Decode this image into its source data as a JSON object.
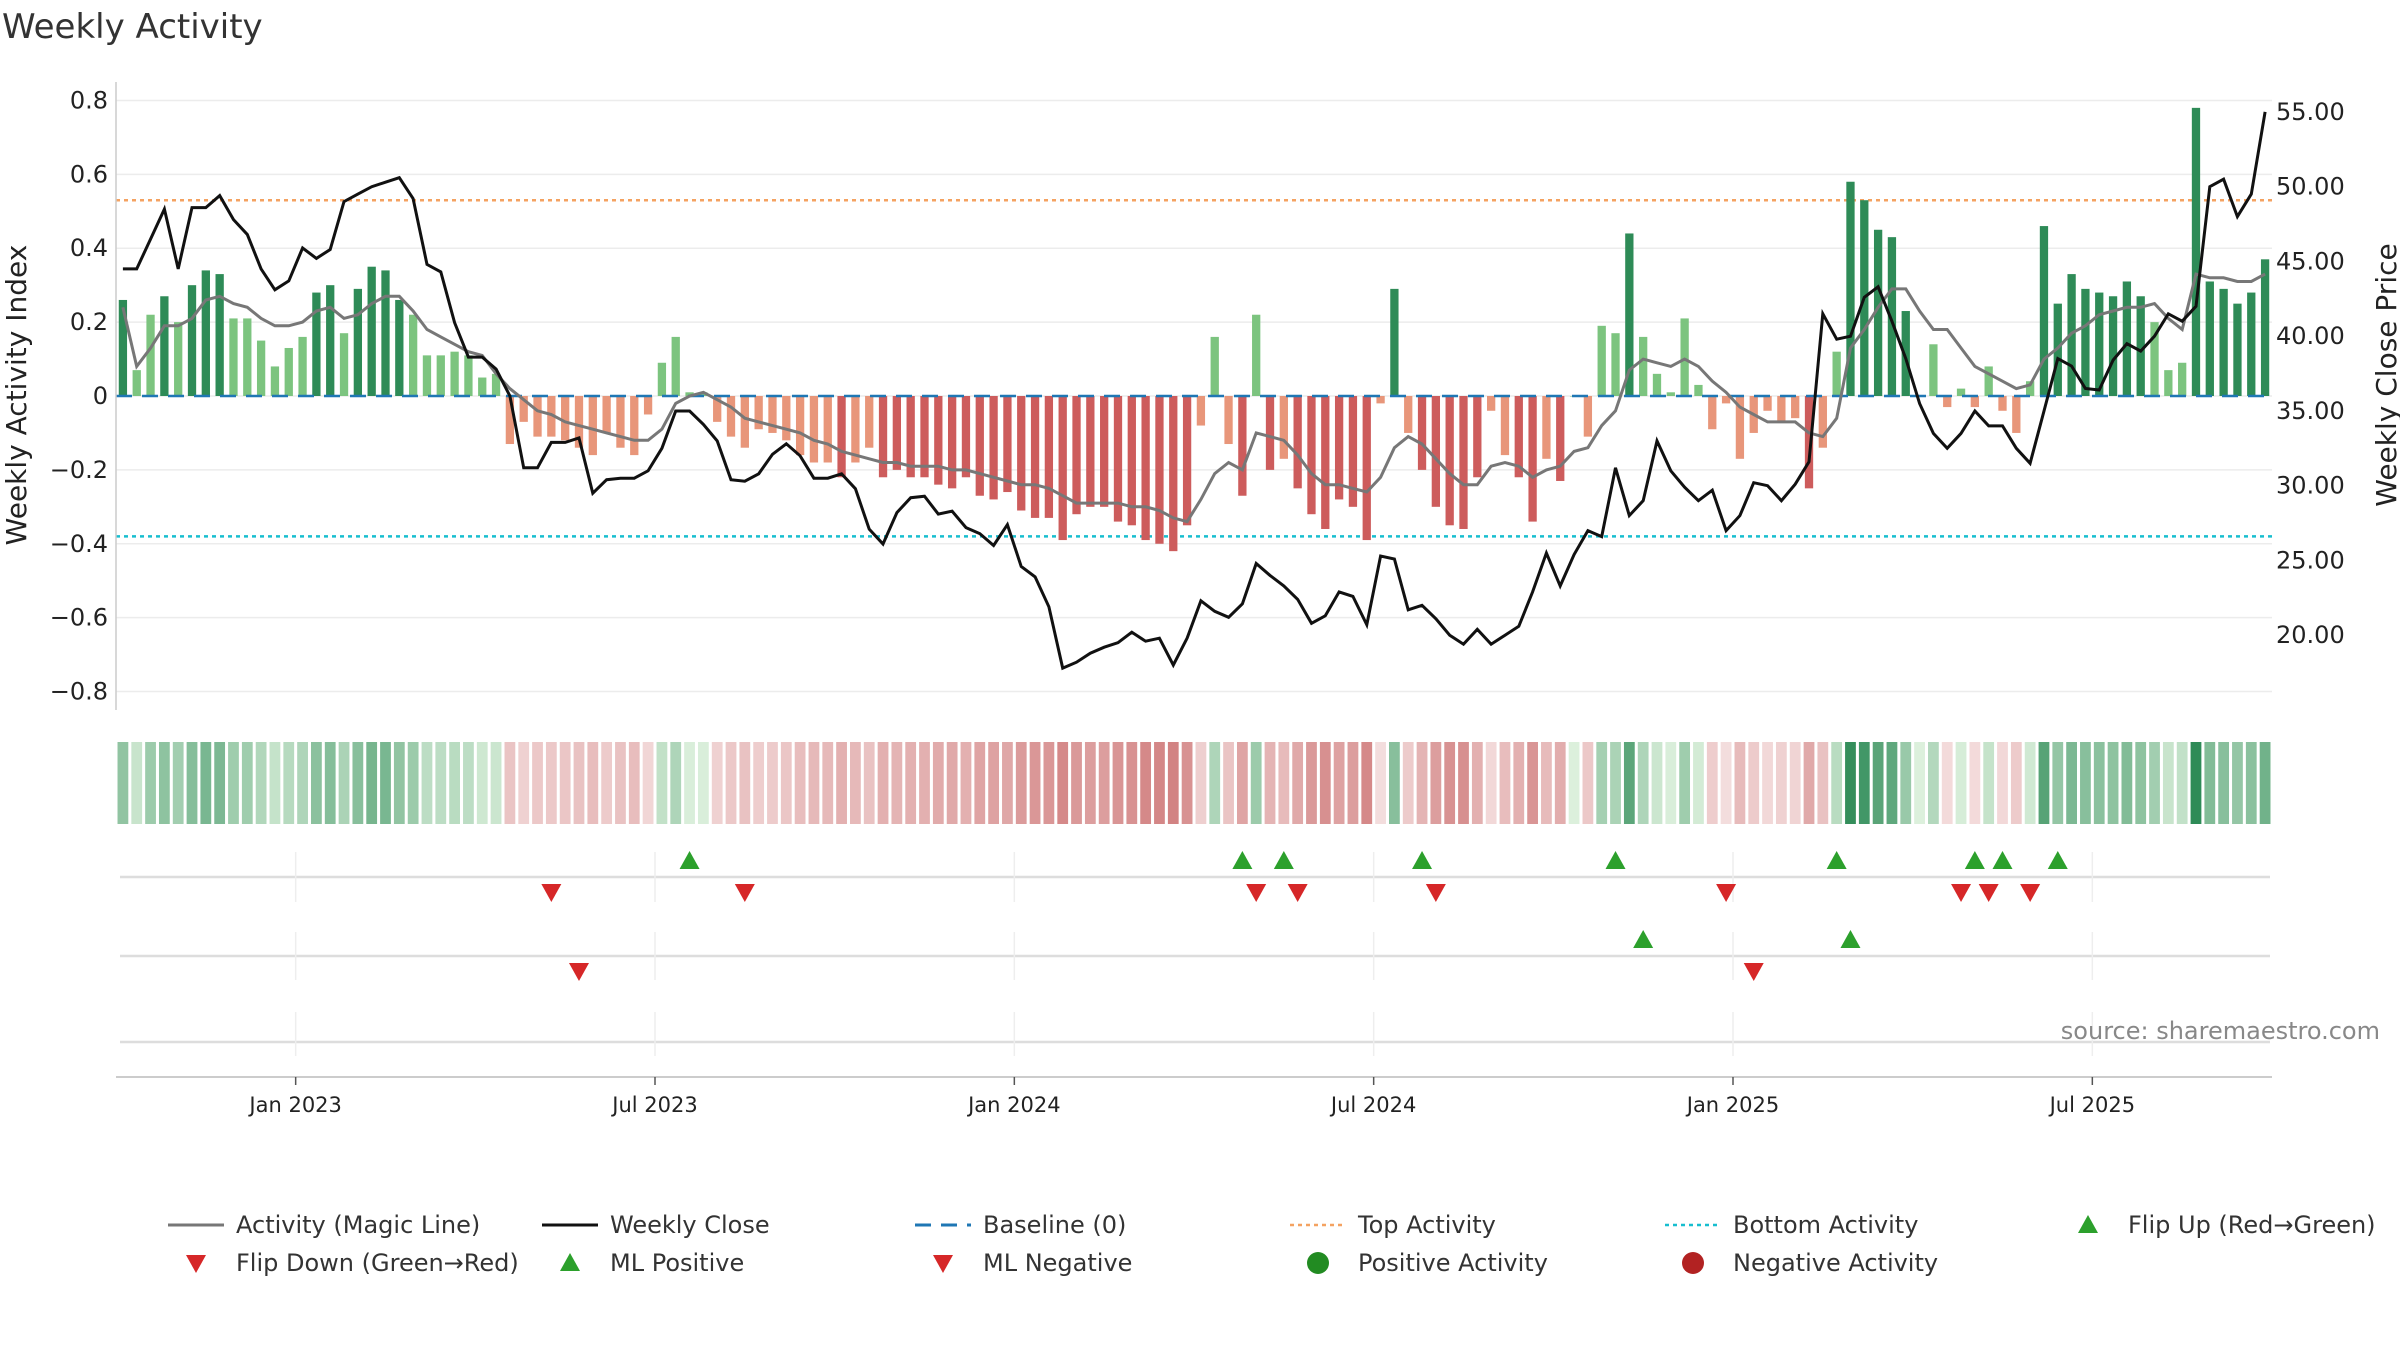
{
  "chart_data": {
    "type": "bar",
    "title": "Weekly Activity",
    "ylabel": "Weekly Activity Index",
    "y2label": "Weekly Close Price",
    "ylim": [
      -0.85,
      0.85
    ],
    "y2lim": [
      15.0,
      57.0
    ],
    "yticks": [
      -0.8,
      -0.6,
      -0.4,
      -0.2,
      0,
      0.2,
      0.4,
      0.6,
      0.8
    ],
    "ytick_labels": [
      "−0.8",
      "−0.6",
      "−0.4",
      "−0.2",
      "0",
      "0.2",
      "0.4",
      "0.6",
      "0.8"
    ],
    "y2ticks": [
      20,
      25,
      30,
      35,
      40,
      45,
      50,
      55
    ],
    "y2tick_labels": [
      "20.00",
      "25.00",
      "30.00",
      "35.00",
      "40.00",
      "45.00",
      "50.00",
      "55.00"
    ],
    "x_start": "2022-10-03",
    "xtick_labels": [
      "Jan 2023",
      "Jul 2023",
      "Jan 2024",
      "Jul 2024",
      "Jan 2025",
      "Jul 2025"
    ],
    "xtick_weeks": [
      13,
      39,
      65,
      91,
      117,
      143
    ],
    "top_activity": 0.53,
    "bottom_activity": -0.38,
    "baseline": 0,
    "series": [
      {
        "name": "Weekly Activity",
        "values": [
          0.26,
          0.07,
          0.22,
          0.27,
          0.2,
          0.3,
          0.34,
          0.33,
          0.21,
          0.21,
          0.15,
          0.08,
          0.13,
          0.16,
          0.28,
          0.3,
          0.17,
          0.29,
          0.35,
          0.34,
          0.26,
          0.22,
          0.11,
          0.11,
          0.12,
          0.11,
          0.05,
          0.06,
          -0.13,
          -0.07,
          -0.11,
          -0.11,
          -0.12,
          -0.14,
          -0.16,
          -0.1,
          -0.14,
          -0.16,
          -0.05,
          0.09,
          0.16,
          0.01,
          0.01,
          -0.07,
          -0.11,
          -0.14,
          -0.09,
          -0.1,
          -0.12,
          -0.16,
          -0.18,
          -0.18,
          -0.22,
          -0.18,
          -0.14,
          -0.22,
          -0.2,
          -0.22,
          -0.22,
          -0.24,
          -0.25,
          -0.22,
          -0.27,
          -0.28,
          -0.26,
          -0.31,
          -0.33,
          -0.33,
          -0.39,
          -0.32,
          -0.3,
          -0.3,
          -0.34,
          -0.35,
          -0.39,
          -0.4,
          -0.42,
          -0.35,
          -0.08,
          0.16,
          -0.13,
          -0.27,
          0.22,
          -0.2,
          -0.17,
          -0.25,
          -0.32,
          -0.36,
          -0.28,
          -0.3,
          -0.39,
          -0.02,
          0.29,
          -0.1,
          -0.2,
          -0.3,
          -0.35,
          -0.36,
          -0.22,
          -0.04,
          -0.16,
          -0.22,
          -0.34,
          -0.17,
          -0.23,
          0.0,
          -0.11,
          0.19,
          0.17,
          0.44,
          0.16,
          0.06,
          0.01,
          0.21,
          0.03,
          -0.09,
          -0.02,
          -0.17,
          -0.1,
          -0.04,
          -0.07,
          -0.06,
          -0.25,
          -0.14,
          0.12,
          0.58,
          0.53,
          0.45,
          0.43,
          0.23,
          0.0,
          0.14,
          -0.03,
          0.02,
          -0.03,
          0.08,
          -0.04,
          -0.1,
          0.04,
          0.46,
          0.25,
          0.33,
          0.29,
          0.28,
          0.27,
          0.31,
          0.27,
          0.2,
          0.07,
          0.09,
          0.78,
          0.31,
          0.29,
          0.25,
          0.28,
          0.37
        ]
      },
      {
        "name": "Activity (Magic Line)",
        "values": [
          0.24,
          0.08,
          0.13,
          0.19,
          0.19,
          0.21,
          0.26,
          0.27,
          0.25,
          0.24,
          0.21,
          0.19,
          0.19,
          0.2,
          0.23,
          0.24,
          0.21,
          0.22,
          0.25,
          0.27,
          0.27,
          0.23,
          0.18,
          0.16,
          0.14,
          0.12,
          0.11,
          0.06,
          0.02,
          -0.01,
          -0.04,
          -0.05,
          -0.07,
          -0.08,
          -0.09,
          -0.1,
          -0.11,
          -0.12,
          -0.12,
          -0.09,
          -0.02,
          0.0,
          0.01,
          -0.01,
          -0.03,
          -0.06,
          -0.07,
          -0.08,
          -0.09,
          -0.1,
          -0.12,
          -0.13,
          -0.15,
          -0.16,
          -0.17,
          -0.18,
          -0.18,
          -0.19,
          -0.19,
          -0.19,
          -0.2,
          -0.2,
          -0.21,
          -0.22,
          -0.23,
          -0.24,
          -0.24,
          -0.25,
          -0.27,
          -0.29,
          -0.29,
          -0.29,
          -0.29,
          -0.3,
          -0.3,
          -0.31,
          -0.33,
          -0.34,
          -0.28,
          -0.21,
          -0.18,
          -0.2,
          -0.1,
          -0.11,
          -0.12,
          -0.16,
          -0.21,
          -0.24,
          -0.24,
          -0.25,
          -0.26,
          -0.22,
          -0.14,
          -0.11,
          -0.13,
          -0.17,
          -0.21,
          -0.24,
          -0.24,
          -0.19,
          -0.18,
          -0.19,
          -0.22,
          -0.2,
          -0.19,
          -0.15,
          -0.14,
          -0.08,
          -0.04,
          0.07,
          0.1,
          0.09,
          0.08,
          0.1,
          0.08,
          0.04,
          0.01,
          -0.03,
          -0.05,
          -0.07,
          -0.07,
          -0.07,
          -0.1,
          -0.11,
          -0.06,
          0.13,
          0.18,
          0.24,
          0.29,
          0.29,
          0.23,
          0.18,
          0.18,
          0.13,
          0.08,
          0.06,
          0.04,
          0.02,
          0.03,
          0.1,
          0.13,
          0.17,
          0.19,
          0.22,
          0.23,
          0.24,
          0.24,
          0.25,
          0.21,
          0.18,
          0.33,
          0.32,
          0.32,
          0.31,
          0.31,
          0.33
        ]
      },
      {
        "name": "Weekly Close",
        "values": [
          44.5,
          44.5,
          46.5,
          48.5,
          44.5,
          48.6,
          48.6,
          49.4,
          47.8,
          46.8,
          44.5,
          43.1,
          43.7,
          45.9,
          45.2,
          45.8,
          49.0,
          49.5,
          50.0,
          50.3,
          50.6,
          49.2,
          44.8,
          44.3,
          40.9,
          38.6,
          38.6,
          37.8,
          36.0,
          31.2,
          31.2,
          32.9,
          32.9,
          33.2,
          29.5,
          30.4,
          30.5,
          30.5,
          31.0,
          32.5,
          35.0,
          35.0,
          34.1,
          33.0,
          30.4,
          30.3,
          30.8,
          32.1,
          32.8,
          32.0,
          30.5,
          30.5,
          30.8,
          29.8,
          27.1,
          26.1,
          28.2,
          29.2,
          29.3,
          28.1,
          28.3,
          27.2,
          26.8,
          26.0,
          27.4,
          24.6,
          23.9,
          21.9,
          17.8,
          18.2,
          18.8,
          19.2,
          19.5,
          20.2,
          19.6,
          19.8,
          18.0,
          19.8,
          22.3,
          21.6,
          21.2,
          22.1,
          24.8,
          24.0,
          23.3,
          22.4,
          20.8,
          21.3,
          22.9,
          22.6,
          20.7,
          25.3,
          25.1,
          21.7,
          22.0,
          21.1,
          20.0,
          19.4,
          20.4,
          19.4,
          20.0,
          20.6,
          22.9,
          25.5,
          23.3,
          25.4,
          27.0,
          26.6,
          31.2,
          28.0,
          29.0,
          33.0,
          31.0,
          29.9,
          29.0,
          29.7,
          27.0,
          28.0,
          30.2,
          30.0,
          29.0,
          30.1,
          31.6,
          41.5,
          39.8,
          40.0,
          42.6,
          43.3,
          41.0,
          38.5,
          35.5,
          33.5,
          32.5,
          33.5,
          35.0,
          34.0,
          34.0,
          32.5,
          31.5,
          35.0,
          38.5,
          38.0,
          36.5,
          36.4,
          38.4,
          39.5,
          39.0,
          40.0,
          41.5,
          41.0,
          42.0,
          50.0,
          50.5,
          48.0,
          49.5,
          55.0
        ]
      }
    ],
    "flip_up_weeks": [
      41,
      81,
      84,
      94,
      108,
      124,
      134,
      136,
      140
    ],
    "flip_down_weeks": [
      31,
      45,
      82,
      85,
      95,
      116,
      133,
      135,
      138
    ],
    "ml_positive_weeks": [
      110,
      125
    ],
    "ml_negative_weeks": [
      33,
      118
    ],
    "legend": [
      {
        "label": "Activity (Magic Line)",
        "kind": "line",
        "color": "#777777"
      },
      {
        "label": "Weekly Close",
        "kind": "line",
        "color": "#111111"
      },
      {
        "label": "Baseline (0)",
        "kind": "dash",
        "color": "#1f77b4"
      },
      {
        "label": "Top Activity",
        "kind": "dot",
        "color": "#f4a261"
      },
      {
        "label": "Bottom Activity",
        "kind": "dot",
        "color": "#17becf"
      },
      {
        "label": "Flip Up (Red→Green)",
        "kind": "tri-up",
        "color": "#2ca02c"
      },
      {
        "label": "Flip Down (Green→Red)",
        "kind": "tri-down",
        "color": "#d62728"
      },
      {
        "label": "ML Positive",
        "kind": "tri-up",
        "color": "#2ca02c"
      },
      {
        "label": "ML Negative",
        "kind": "tri-down",
        "color": "#d62728"
      },
      {
        "label": "Positive Activity",
        "kind": "circle",
        "color": "#228b22"
      },
      {
        "label": "Negative Activity",
        "kind": "circle",
        "color": "#b22222"
      }
    ],
    "source": "source: sharemaestro.com"
  }
}
